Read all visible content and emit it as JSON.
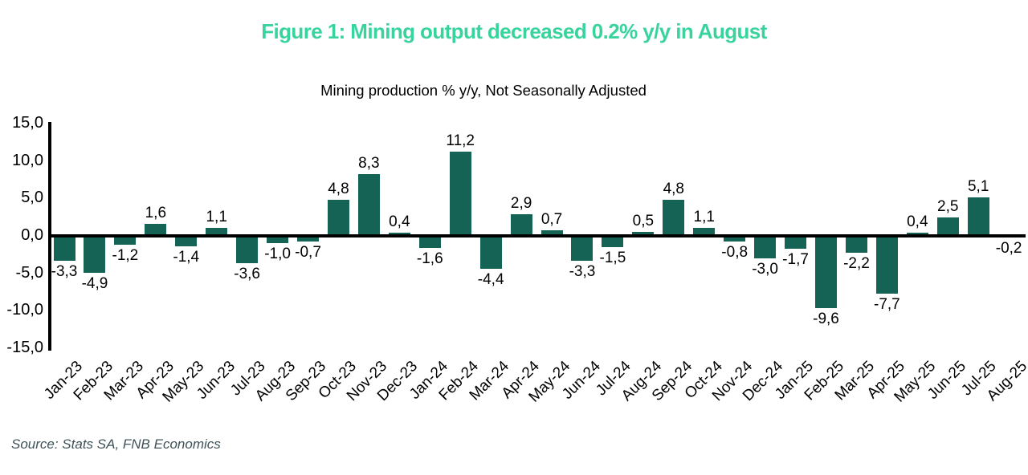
{
  "figure": {
    "title": "Figure 1: Mining output decreased 0.2% y/y in August",
    "title_color": "#39D49E",
    "source": "Source: Stats SA, FNB Economics",
    "source_color": "#3E5258"
  },
  "chart_data": {
    "type": "bar",
    "title": "Mining production % y/y, Not Seasonally Adjusted",
    "xlabel": "",
    "ylabel": "",
    "ylim": [
      -15,
      15
    ],
    "grid": false,
    "legend": "none",
    "bar_color": "#146355",
    "axis_color": "#000000",
    "decimal_style": "comma",
    "categories": [
      "Jan-23",
      "Feb-23",
      "Mar-23",
      "Apr-23",
      "May-23",
      "Jun-23",
      "Jul-23",
      "Aug-23",
      "Sep-23",
      "Oct-23",
      "Nov-23",
      "Dec-23",
      "Jan-24",
      "Feb-24",
      "Mar-24",
      "Apr-24",
      "May-24",
      "Jun-24",
      "Jul-24",
      "Aug-24",
      "Sep-24",
      "Oct-24",
      "Nov-24",
      "Dec-24",
      "Jan-25",
      "Feb-25",
      "Mar-25",
      "Apr-25",
      "May-25",
      "Jun-25",
      "Jul-25",
      "Aug-25"
    ],
    "values": [
      -3.3,
      -4.9,
      -1.2,
      1.6,
      -1.4,
      1.1,
      -3.6,
      -1.0,
      -0.7,
      4.8,
      8.3,
      0.4,
      -1.6,
      11.2,
      -4.4,
      2.9,
      0.7,
      -3.3,
      -1.5,
      0.5,
      4.8,
      1.1,
      -0.8,
      -3.0,
      -1.7,
      -9.6,
      -2.2,
      -7.7,
      0.4,
      2.5,
      5.1,
      -0.2
    ],
    "value_labels": [
      "-3,3",
      "-4,9",
      "-1,2",
      "1,6",
      "-1,4",
      "1,1",
      "-3,6",
      "-1,0",
      "-0,7",
      "4,8",
      "8,3",
      "0,4",
      "-1,6",
      "11,2",
      "-4,4",
      "2,9",
      "0,7",
      "-3,3",
      "-1,5",
      "0,5",
      "4,8",
      "1,1",
      "-0,8",
      "-3,0",
      "-1,7",
      "-9,6",
      "-2,2",
      "-7,7",
      "0,4",
      "2,5",
      "5,1",
      "-0,2"
    ],
    "yticks": [
      15,
      10,
      5,
      0,
      -5,
      -10,
      -15
    ],
    "ytick_labels": [
      "15,0",
      "10,0",
      "5,0",
      "0,0",
      "-5,0",
      "-10,0",
      "-15,0"
    ]
  }
}
